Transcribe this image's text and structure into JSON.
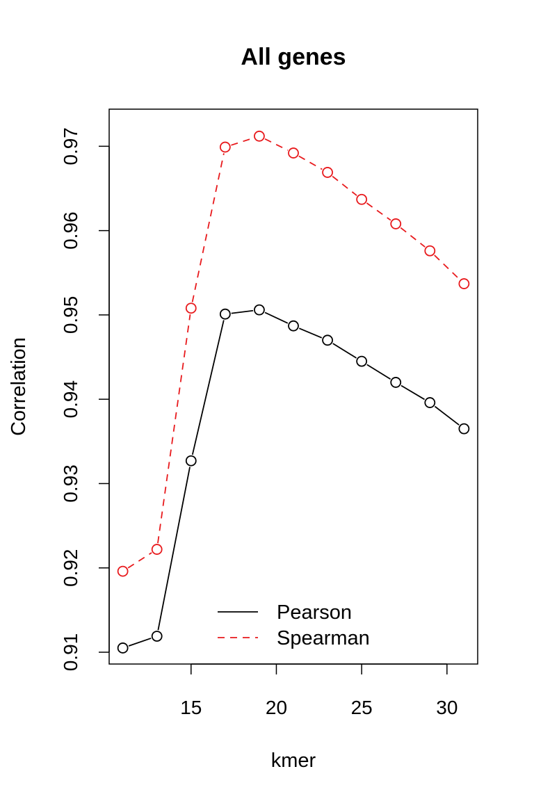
{
  "chart_data": {
    "type": "line",
    "title": "All genes",
    "xlabel": "kmer",
    "ylabel": "Correlation",
    "xlim": [
      10.2,
      31.8
    ],
    "ylim": [
      0.9086,
      0.9744
    ],
    "xticks": [
      15,
      20,
      25,
      30
    ],
    "yticks": [
      0.91,
      0.92,
      0.93,
      0.94,
      0.95,
      0.96,
      0.97
    ],
    "grid": false,
    "legend": {
      "position": "bottom-center"
    },
    "x": [
      11,
      13,
      15,
      17,
      19,
      21,
      23,
      25,
      27,
      29,
      31
    ],
    "series": [
      {
        "name": "Pearson",
        "color": "#000000",
        "line_style": "solid",
        "marker": "open-circle",
        "values": [
          0.9105,
          0.9119,
          0.9327,
          0.9501,
          0.9506,
          0.9487,
          0.947,
          0.9445,
          0.942,
          0.9396,
          0.9365
        ]
      },
      {
        "name": "Spearman",
        "color": "#e8191c",
        "line_style": "dashed",
        "marker": "open-circle",
        "values": [
          0.9196,
          0.9222,
          0.9508,
          0.9699,
          0.9712,
          0.9692,
          0.9669,
          0.9637,
          0.9608,
          0.9576,
          0.9537
        ]
      }
    ]
  }
}
